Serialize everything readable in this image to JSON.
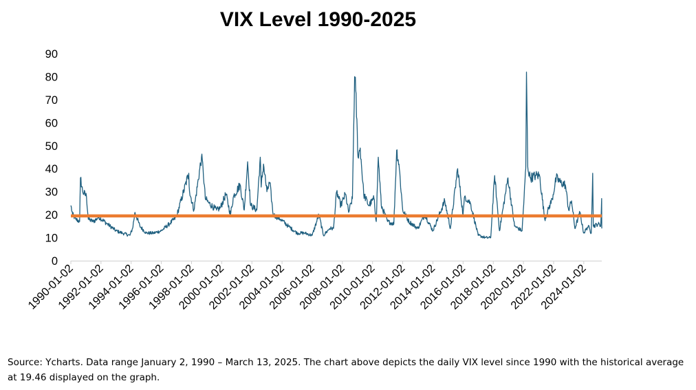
{
  "chart_data": {
    "type": "line",
    "title": "VIX Level 1990-2025",
    "source_note": "Source: Ycharts. Data range January 2, 1990 – March 13, 2025. The chart above depicts the daily VIX level since 1990 with the historical average at 19.46 displayed on the graph.",
    "x_start": "1990-01-02",
    "x_end": "2025-03-13",
    "x_tick_labels": [
      "1990-01-02",
      "1992-01-02",
      "1994-01-02",
      "1996-01-02",
      "1998-01-02",
      "2000-01-02",
      "2002-01-02",
      "2004-01-02",
      "2006-01-02",
      "2008-01-02",
      "2010-01-02",
      "2012-01-02",
      "2014-01-02",
      "2016-01-02",
      "2018-01-02",
      "2020-01-02",
      "2022-01-02",
      "2024-01-02"
    ],
    "y_tick_labels": [
      "0",
      "10",
      "20",
      "30",
      "40",
      "50",
      "60",
      "70",
      "80",
      "90"
    ],
    "ylim": [
      0,
      90
    ],
    "y_ticks": [
      0,
      10,
      20,
      30,
      40,
      50,
      60,
      70,
      80,
      90
    ],
    "grid": false,
    "colors": {
      "series": "#1f5f7f",
      "average": "#ec7c30"
    },
    "series": [
      {
        "x": [
          "1990-01-02",
          "1990-02-15",
          "1990-05-01",
          "1990-08-03",
          "1990-08-23",
          "1990-10-15",
          "1991-01-15",
          "1991-03-01",
          "1991-07-01",
          "1991-11-15",
          "1992-06-01",
          "1993-01-01",
          "1993-06-01",
          "1993-12-01",
          "1994-02-04",
          "1994-04-04",
          "1994-08-01",
          "1995-01-01",
          "1995-07-01",
          "1996-01-01",
          "1996-07-15",
          "1997-01-01",
          "1997-10-27",
          "1997-11-15",
          "1998-03-01",
          "1998-08-31",
          "1998-10-08",
          "1998-12-01",
          "1999-03-01",
          "1999-09-01",
          "1999-12-01",
          "2000-04-14",
          "2000-08-01",
          "2000-10-15",
          "2001-03-22",
          "2001-07-01",
          "2001-09-21",
          "2001-12-01",
          "2002-05-01",
          "2002-07-24",
          "2002-08-15",
          "2002-10-10",
          "2003-01-01",
          "2003-03-11",
          "2003-06-01",
          "2003-12-01",
          "2004-06-01",
          "2005-01-01",
          "2005-07-01",
          "2006-01-01",
          "2006-06-13",
          "2006-10-01",
          "2007-02-27",
          "2007-06-01",
          "2007-08-16",
          "2007-11-26",
          "2008-03-17",
          "2008-06-01",
          "2008-09-01",
          "2008-10-24",
          "2008-11-20",
          "2009-01-15",
          "2009-03-09",
          "2009-06-01",
          "2009-10-01",
          "2010-02-05",
          "2010-04-01",
          "2010-05-20",
          "2010-08-01",
          "2011-01-01",
          "2011-06-01",
          "2011-08-08",
          "2011-10-03",
          "2012-01-01",
          "2012-06-01",
          "2013-01-01",
          "2013-06-20",
          "2014-01-01",
          "2014-10-15",
          "2015-03-01",
          "2015-08-24",
          "2016-01-01",
          "2016-02-11",
          "2016-06-27",
          "2017-01-01",
          "2017-07-01",
          "2017-11-01",
          "2018-02-05",
          "2018-06-01",
          "2018-12-24",
          "2019-06-01",
          "2019-12-01",
          "2020-02-28",
          "2020-03-16",
          "2020-04-15",
          "2020-06-12",
          "2020-10-30",
          "2021-01-27",
          "2021-06-01",
          "2021-12-01",
          "2022-03-07",
          "2022-06-13",
          "2022-10-12",
          "2023-01-01",
          "2023-03-13",
          "2023-06-01",
          "2023-10-01",
          "2024-01-01",
          "2024-04-19",
          "2024-07-01",
          "2024-08-05",
          "2024-08-20",
          "2024-12-18",
          "2025-02-15",
          "2025-03-10",
          "2025-03-13"
        ],
        "y": [
          24,
          20,
          18,
          17,
          36,
          30,
          28,
          18,
          17,
          19,
          16,
          13,
          12,
          11,
          14,
          21,
          15,
          12,
          12,
          13,
          16,
          19,
          38,
          30,
          22,
          45,
          40,
          27,
          25,
          22,
          23,
          29,
          20,
          28,
          33,
          22,
          43,
          24,
          22,
          45,
          32,
          42,
          30,
          34,
          20,
          18,
          15,
          12,
          12,
          11,
          20,
          11,
          14,
          14,
          30,
          24,
          29,
          21,
          27,
          80,
          74,
          45,
          49,
          29,
          24,
          27,
          17,
          45,
          24,
          17,
          16,
          48,
          42,
          22,
          17,
          14,
          20,
          13,
          26,
          14,
          40,
          20,
          28,
          25,
          11,
          10,
          10,
          37,
          13,
          36,
          15,
          13,
          40,
          82,
          41,
          36,
          37,
          37,
          18,
          27,
          36,
          34,
          33,
          22,
          26,
          14,
          21,
          12,
          15,
          12,
          38,
          15,
          16,
          15,
          27,
          14
        ]
      }
    ],
    "average_line": {
      "label": "historical average",
      "value": 19.46
    }
  }
}
